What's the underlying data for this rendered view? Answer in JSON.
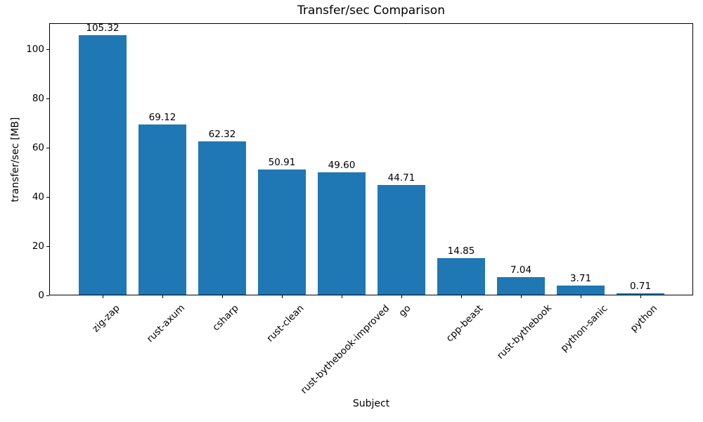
{
  "chart_data": {
    "type": "bar",
    "title": "Transfer/sec Comparison",
    "xlabel": "Subject",
    "ylabel": "transfer/sec [MB]",
    "categories": [
      "zig-zap",
      "rust-axum",
      "csharp",
      "rust-clean",
      "rust-bythebook-improved",
      "go",
      "cpp-beast",
      "rust-bythebook",
      "python-sanic",
      "python"
    ],
    "values": [
      105.32,
      69.12,
      62.32,
      50.91,
      49.6,
      44.71,
      14.85,
      7.04,
      3.71,
      0.71
    ],
    "bar_labels": [
      "105.32",
      "69.12",
      "62.32",
      "50.91",
      "49.60",
      "44.71",
      "14.85",
      "7.04",
      "3.71",
      "0.71"
    ],
    "ytick_labels": [
      "0",
      "20",
      "40",
      "60",
      "80",
      "100"
    ],
    "yticks": [
      0,
      20,
      40,
      60,
      80,
      100
    ],
    "ylim": [
      0,
      110.6
    ],
    "xtick_rotation_deg": 45,
    "grid": false,
    "legend": null,
    "bar_color": "#1f77b4",
    "axis_color": "#000000",
    "background_color": "#ffffff"
  }
}
